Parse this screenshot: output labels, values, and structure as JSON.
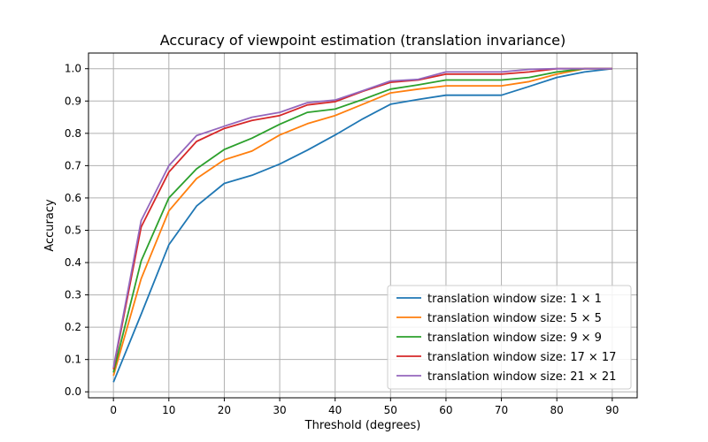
{
  "chart_data": {
    "type": "line",
    "title": "Accuracy of viewpoint estimation (translation invariance)",
    "xlabel": "Threshold (degrees)",
    "ylabel": "Accuracy",
    "xlim": [
      -4.5,
      94.5
    ],
    "ylim": [
      -0.0185,
      1.0485
    ],
    "xticks": [
      0,
      10,
      20,
      30,
      40,
      50,
      60,
      70,
      80,
      90
    ],
    "yticks": [
      0.0,
      0.1,
      0.2,
      0.3,
      0.4,
      0.5,
      0.6,
      0.7,
      0.8,
      0.9,
      1.0
    ],
    "xtick_labels": [
      "0",
      "10",
      "20",
      "30",
      "40",
      "50",
      "60",
      "70",
      "80",
      "90"
    ],
    "ytick_labels": [
      "0.0",
      "0.1",
      "0.2",
      "0.3",
      "0.4",
      "0.5",
      "0.6",
      "0.7",
      "0.8",
      "0.9",
      "1.0"
    ],
    "grid": true,
    "legend_position": "bottom-right",
    "x": [
      0,
      5,
      10,
      15,
      20,
      25,
      30,
      35,
      40,
      45,
      50,
      55,
      60,
      65,
      70,
      75,
      80,
      85,
      90
    ],
    "series": [
      {
        "name": "translation window size: 1 × 1",
        "color": "#1f77b4",
        "values": [
          0.03,
          0.24,
          0.455,
          0.575,
          0.645,
          0.67,
          0.705,
          0.748,
          0.795,
          0.845,
          0.89,
          0.905,
          0.918,
          0.918,
          0.918,
          0.945,
          0.973,
          0.99,
          1.0
        ]
      },
      {
        "name": "translation window size: 5 × 5",
        "color": "#ff7f0e",
        "values": [
          0.05,
          0.35,
          0.56,
          0.66,
          0.718,
          0.745,
          0.795,
          0.83,
          0.855,
          0.89,
          0.925,
          0.937,
          0.947,
          0.947,
          0.947,
          0.96,
          0.983,
          1.0,
          1.0
        ]
      },
      {
        "name": "translation window size: 9 × 9",
        "color": "#2ca02c",
        "values": [
          0.06,
          0.405,
          0.6,
          0.69,
          0.75,
          0.785,
          0.828,
          0.865,
          0.875,
          0.905,
          0.937,
          0.95,
          0.965,
          0.965,
          0.965,
          0.973,
          0.99,
          1.0,
          1.0
        ]
      },
      {
        "name": "translation window size: 17 × 17",
        "color": "#d62728",
        "values": [
          0.07,
          0.51,
          0.68,
          0.775,
          0.815,
          0.84,
          0.855,
          0.888,
          0.898,
          0.93,
          0.958,
          0.965,
          0.983,
          0.983,
          0.983,
          0.99,
          1.0,
          1.0,
          1.0
        ]
      },
      {
        "name": "translation window size: 21 × 21",
        "color": "#9467bd",
        "values": [
          0.075,
          0.53,
          0.7,
          0.793,
          0.822,
          0.85,
          0.865,
          0.895,
          0.903,
          0.932,
          0.962,
          0.967,
          0.99,
          0.99,
          0.99,
          0.998,
          1.0,
          1.0,
          1.0
        ]
      }
    ]
  }
}
